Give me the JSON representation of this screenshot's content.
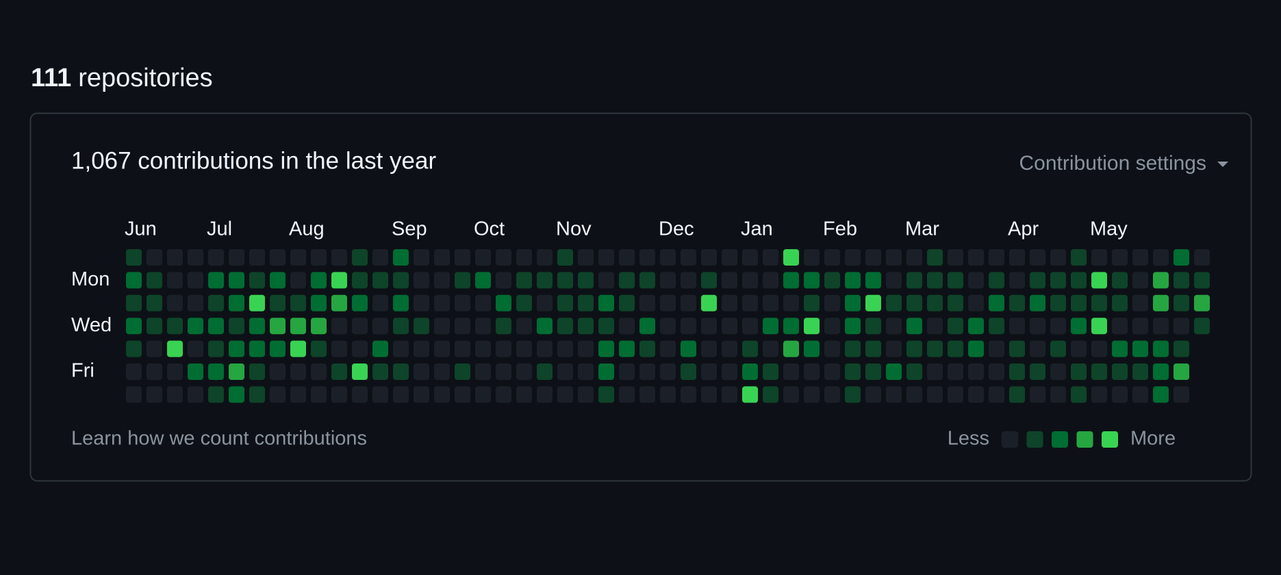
{
  "header": {
    "count": "111",
    "label": "repositories"
  },
  "contributions": {
    "title": "1,067 contributions in the last year",
    "settings": "Contribution settings",
    "months": [
      "Jun",
      "Jul",
      "Aug",
      "Sep",
      "Oct",
      "Nov",
      "Dec",
      "Jan",
      "Feb",
      "Mar",
      "Apr",
      "May"
    ],
    "days": [
      "Mon",
      "Wed",
      "Fri"
    ],
    "level_colors": [
      "#1b2028",
      "#0e4429",
      "#006d32",
      "#26a641",
      "#39d353"
    ],
    "levels": [
      [
        1,
        0,
        0,
        0,
        0,
        0,
        0,
        0,
        0,
        0,
        0,
        1,
        0,
        2,
        0,
        0,
        0,
        0,
        0,
        0,
        0,
        1,
        0,
        0,
        0,
        0,
        0,
        0,
        0,
        0,
        0,
        0,
        4,
        0,
        0,
        0,
        0,
        0,
        0,
        1,
        0,
        0,
        0,
        0,
        0,
        0,
        1,
        0,
        0,
        0,
        0,
        2,
        0
      ],
      [
        2,
        1,
        0,
        0,
        2,
        2,
        1,
        2,
        0,
        2,
        4,
        1,
        1,
        1,
        0,
        0,
        1,
        2,
        0,
        1,
        1,
        1,
        1,
        0,
        1,
        1,
        0,
        0,
        1,
        0,
        0,
        0,
        2,
        2,
        1,
        2,
        2,
        0,
        1,
        1,
        1,
        0,
        1,
        0,
        1,
        1,
        1,
        4,
        1,
        0,
        3,
        1,
        1
      ],
      [
        1,
        1,
        0,
        0,
        1,
        2,
        4,
        1,
        1,
        2,
        3,
        2,
        0,
        2,
        0,
        0,
        0,
        0,
        2,
        1,
        0,
        1,
        1,
        2,
        1,
        0,
        0,
        0,
        4,
        0,
        0,
        0,
        0,
        1,
        0,
        2,
        4,
        1,
        1,
        1,
        1,
        0,
        2,
        1,
        2,
        1,
        1,
        1,
        1,
        0,
        3,
        1,
        3
      ],
      [
        2,
        1,
        1,
        2,
        2,
        1,
        2,
        3,
        3,
        3,
        0,
        0,
        0,
        1,
        1,
        0,
        0,
        0,
        1,
        0,
        2,
        1,
        1,
        1,
        0,
        2,
        0,
        0,
        0,
        0,
        0,
        2,
        2,
        4,
        0,
        2,
        1,
        0,
        2,
        0,
        1,
        2,
        1,
        0,
        0,
        0,
        2,
        4,
        0,
        0,
        0,
        0,
        1
      ],
      [
        1,
        0,
        4,
        0,
        1,
        2,
        2,
        2,
        4,
        1,
        0,
        0,
        2,
        0,
        0,
        0,
        0,
        0,
        0,
        0,
        0,
        0,
        0,
        2,
        2,
        1,
        0,
        2,
        0,
        0,
        1,
        0,
        3,
        2,
        0,
        1,
        1,
        0,
        1,
        1,
        1,
        2,
        0,
        1,
        0,
        1,
        0,
        0,
        2,
        2,
        2,
        1,
        null
      ],
      [
        0,
        0,
        0,
        2,
        2,
        3,
        1,
        0,
        0,
        0,
        1,
        4,
        1,
        1,
        0,
        0,
        1,
        0,
        0,
        0,
        1,
        0,
        0,
        2,
        0,
        0,
        0,
        1,
        0,
        0,
        2,
        1,
        0,
        0,
        0,
        1,
        1,
        2,
        1,
        0,
        0,
        0,
        0,
        1,
        1,
        0,
        1,
        1,
        1,
        1,
        2,
        3,
        null
      ],
      [
        0,
        0,
        0,
        0,
        1,
        2,
        1,
        0,
        0,
        0,
        0,
        0,
        0,
        0,
        0,
        0,
        0,
        0,
        0,
        0,
        0,
        0,
        0,
        1,
        0,
        0,
        0,
        0,
        0,
        0,
        4,
        1,
        0,
        0,
        0,
        1,
        0,
        0,
        0,
        0,
        0,
        0,
        0,
        1,
        0,
        0,
        1,
        0,
        0,
        0,
        2,
        0,
        null
      ]
    ],
    "footer_link": "Learn how we count contributions",
    "legend": {
      "less": "Less",
      "more": "More"
    }
  }
}
